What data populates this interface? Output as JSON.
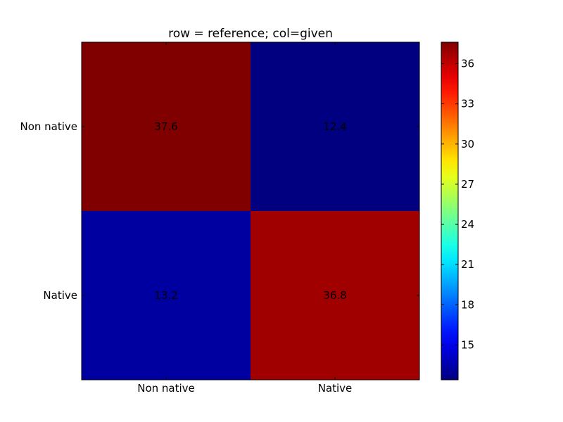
{
  "chart_data": {
    "type": "heatmap",
    "title": "row = reference; col=given",
    "xlabel": "",
    "ylabel": "",
    "x_categories": [
      "Non native",
      "Native"
    ],
    "y_categories": [
      "Non native",
      "Native"
    ],
    "values": [
      [
        37.6,
        12.4
      ],
      [
        13.2,
        36.8
      ]
    ],
    "value_labels": [
      [
        "37.6",
        "12.4"
      ],
      [
        "13.2",
        "36.8"
      ]
    ],
    "colormap": "jet",
    "colorbar": {
      "range": [
        12.4,
        37.6
      ],
      "ticks": [
        15,
        18,
        21,
        24,
        27,
        30,
        33,
        36
      ],
      "tick_labels": [
        "15",
        "18",
        "21",
        "24",
        "27",
        "30",
        "33",
        "36"
      ]
    },
    "grid": false
  }
}
